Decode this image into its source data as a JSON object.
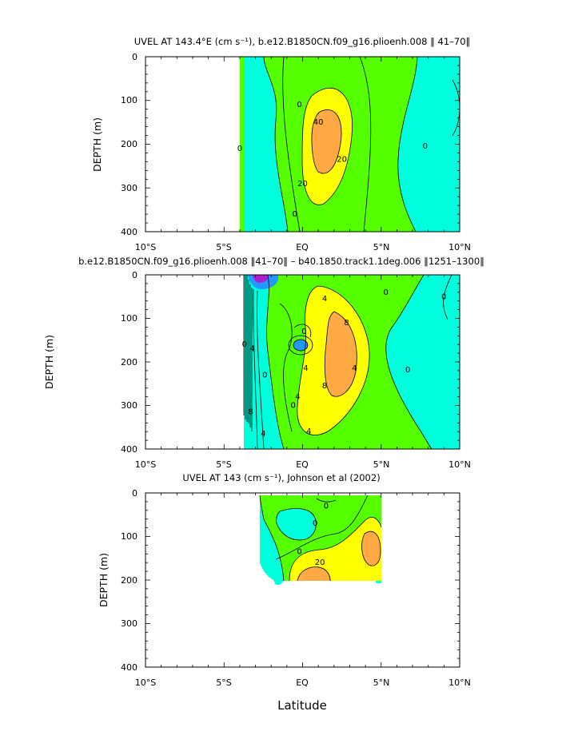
{
  "colors": {
    "cyan": "#00ffdd",
    "green": "#55ff00",
    "yellow": "#ffff00",
    "orange": "#ffaa44",
    "blue": "#2299ff",
    "purple": "#aa22cc",
    "line": "#000000"
  },
  "x_axis_label": "Latitude",
  "chart_data": [
    {
      "type": "contour",
      "title": "UVEL AT 143.4°E (cm s⁻¹), b.e12.B1850CN.f09_g16.plioenh.008 ‖ 41–70‖",
      "ylabel": "DEPTH (m)",
      "xlim": [
        -10,
        10
      ],
      "ylim": [
        400,
        0
      ],
      "x_ticks": [
        "10°S",
        "5°S",
        "EQ",
        "5°N",
        "10°N"
      ],
      "y_ticks": [
        "0",
        "100",
        "200",
        "300",
        "400"
      ],
      "data_extent_lat": [
        -3.9,
        10
      ],
      "contour_levels": [
        0,
        10,
        20,
        30,
        40
      ],
      "contour_labels": [
        {
          "text": "0",
          "lat": -0.2,
          "depth": 110
        },
        {
          "text": "40",
          "lat": 1.0,
          "depth": 150
        },
        {
          "text": "20",
          "lat": 2.5,
          "depth": 235
        },
        {
          "text": "20",
          "lat": 0.0,
          "depth": 290
        },
        {
          "text": "0",
          "lat": -4.0,
          "depth": 210
        },
        {
          "text": "0",
          "lat": 7.8,
          "depth": 205
        },
        {
          "text": "0",
          "lat": -0.5,
          "depth": 360
        }
      ]
    },
    {
      "type": "contour",
      "title": "b.e12.B1850CN.f09_g16.plioenh.008 ‖41–70‖ – b40.1850.track1.1deg.006 ‖1251–1300‖",
      "ylabel": "DEPTH (m)",
      "xlim": [
        -10,
        10
      ],
      "ylim": [
        400,
        0
      ],
      "x_ticks": [
        "10°S",
        "5°S",
        "EQ",
        "5°N",
        "10°N"
      ],
      "y_ticks": [
        "0",
        "100",
        "200",
        "300",
        "400"
      ],
      "data_extent_lat": [
        -3.5,
        10
      ],
      "contour_levels": [
        -4,
        0,
        4,
        8
      ],
      "contour_labels": [
        {
          "text": "4",
          "lat": 1.4,
          "depth": 55
        },
        {
          "text": "0",
          "lat": 5.3,
          "depth": 40
        },
        {
          "text": "0",
          "lat": 9.0,
          "depth": 50
        },
        {
          "text": "8",
          "lat": 2.8,
          "depth": 110
        },
        {
          "text": "0",
          "lat": -3.7,
          "depth": 160
        },
        {
          "text": "4",
          "lat": -3.2,
          "depth": 170
        },
        {
          "text": "0",
          "lat": 0.1,
          "depth": 130
        },
        {
          "text": "4",
          "lat": 3.3,
          "depth": 215
        },
        {
          "text": "0",
          "lat": 6.7,
          "depth": 218
        },
        {
          "text": "0",
          "lat": -2.4,
          "depth": 230
        },
        {
          "text": "4",
          "lat": 0.2,
          "depth": 215
        },
        {
          "text": "8",
          "lat": 1.4,
          "depth": 255
        },
        {
          "text": "4",
          "lat": -0.3,
          "depth": 280
        },
        {
          "text": "0",
          "lat": -0.6,
          "depth": 300
        },
        {
          "text": "8",
          "lat": -3.3,
          "depth": 315
        },
        {
          "text": "4",
          "lat": -2.5,
          "depth": 365
        },
        {
          "text": "4",
          "lat": 0.4,
          "depth": 360
        }
      ]
    },
    {
      "type": "contour",
      "title": "UVEL AT 143 (cm s⁻¹), Johnson et al (2002)",
      "ylabel": "DEPTH (m)",
      "xlim": [
        -10,
        10
      ],
      "ylim": [
        400,
        0
      ],
      "x_ticks": [
        "10°S",
        "5°S",
        "EQ",
        "5°N",
        "10°N"
      ],
      "y_ticks": [
        "0",
        "100",
        "200",
        "300",
        "400"
      ],
      "data_extent_lat": [
        -2.7,
        5
      ],
      "data_extent_depth": [
        10,
        220
      ],
      "contour_levels": [
        0,
        10,
        20,
        30
      ],
      "contour_labels": [
        {
          "text": "0",
          "lat": 0.8,
          "depth": 70
        },
        {
          "text": "0",
          "lat": 1.5,
          "depth": 30
        },
        {
          "text": "20",
          "lat": 1.1,
          "depth": 160
        },
        {
          "text": "0",
          "lat": -0.2,
          "depth": 135
        }
      ]
    }
  ]
}
